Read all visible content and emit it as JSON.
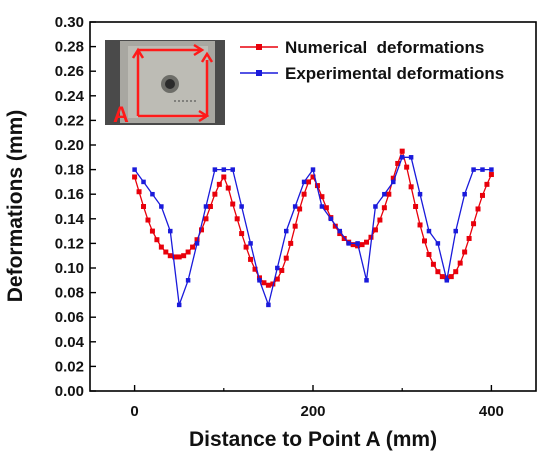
{
  "chart_data": {
    "type": "line",
    "xlabel": "Distance to Point A (mm)",
    "ylabel": "Deformations (mm)",
    "xlim": [
      -50,
      450
    ],
    "ylim": [
      0,
      0.3
    ],
    "x_ticks": [
      0,
      200,
      400
    ],
    "x_tick_labels": [
      "0",
      "200",
      "400"
    ],
    "y_ticks": [
      0.0,
      0.02,
      0.04,
      0.06,
      0.08,
      0.1,
      0.12,
      0.14,
      0.16,
      0.18,
      0.2,
      0.22,
      0.24,
      0.26,
      0.28,
      0.3
    ],
    "y_tick_labels": [
      "0.00",
      "0.02",
      "0.04",
      "0.06",
      "0.08",
      "0.10",
      "0.12",
      "0.14",
      "0.16",
      "0.18",
      "0.20",
      "0.22",
      "0.24",
      "0.26",
      "0.28",
      "0.30"
    ],
    "legend_position": "top-right",
    "series": [
      {
        "name": "Numerical  deformations",
        "color": "#e8000b",
        "marker": "square",
        "x": [
          0,
          5,
          10,
          15,
          20,
          25,
          30,
          35,
          40,
          45,
          50,
          55,
          60,
          65,
          70,
          75,
          80,
          85,
          90,
          95,
          100,
          105,
          110,
          115,
          120,
          125,
          130,
          135,
          140,
          145,
          150,
          155,
          160,
          165,
          170,
          175,
          180,
          185,
          190,
          195,
          200,
          205,
          210,
          215,
          220,
          225,
          230,
          235,
          240,
          245,
          250,
          255,
          260,
          265,
          270,
          275,
          280,
          285,
          290,
          295,
          300,
          305,
          310,
          315,
          320,
          325,
          330,
          335,
          340,
          345,
          350,
          355,
          360,
          365,
          370,
          375,
          380,
          385,
          390,
          395,
          400
        ],
        "values": [
          0.174,
          0.162,
          0.15,
          0.139,
          0.13,
          0.123,
          0.117,
          0.113,
          0.11,
          0.109,
          0.109,
          0.11,
          0.113,
          0.117,
          0.123,
          0.131,
          0.14,
          0.15,
          0.16,
          0.168,
          0.174,
          0.165,
          0.152,
          0.14,
          0.128,
          0.117,
          0.107,
          0.099,
          0.092,
          0.088,
          0.086,
          0.087,
          0.091,
          0.098,
          0.108,
          0.12,
          0.134,
          0.148,
          0.16,
          0.17,
          0.174,
          0.167,
          0.158,
          0.149,
          0.141,
          0.134,
          0.128,
          0.124,
          0.121,
          0.119,
          0.118,
          0.119,
          0.121,
          0.125,
          0.131,
          0.139,
          0.149,
          0.16,
          0.173,
          0.185,
          0.195,
          0.182,
          0.166,
          0.15,
          0.135,
          0.122,
          0.111,
          0.103,
          0.097,
          0.093,
          0.092,
          0.093,
          0.097,
          0.104,
          0.113,
          0.124,
          0.136,
          0.148,
          0.159,
          0.168,
          0.176
        ]
      },
      {
        "name": "Experimental deformations",
        "color": "#1a1adb",
        "marker": "square",
        "x": [
          0,
          10,
          20,
          30,
          40,
          50,
          60,
          70,
          80,
          90,
          100,
          110,
          120,
          130,
          140,
          150,
          160,
          170,
          180,
          190,
          200,
          210,
          220,
          230,
          240,
          250,
          260,
          270,
          280,
          290,
          300,
          310,
          320,
          330,
          340,
          350,
          360,
          370,
          380,
          390,
          400
        ],
        "values": [
          0.18,
          0.17,
          0.16,
          0.15,
          0.13,
          0.07,
          0.09,
          0.12,
          0.15,
          0.18,
          0.18,
          0.18,
          0.15,
          0.12,
          0.09,
          0.07,
          0.1,
          0.13,
          0.15,
          0.17,
          0.18,
          0.15,
          0.14,
          0.13,
          0.12,
          0.12,
          0.09,
          0.15,
          0.16,
          0.17,
          0.19,
          0.19,
          0.16,
          0.13,
          0.12,
          0.09,
          0.13,
          0.16,
          0.18,
          0.18,
          0.18
        ]
      }
    ]
  },
  "inset": {
    "label": "A",
    "arrow_color": "#ff1a1a"
  }
}
